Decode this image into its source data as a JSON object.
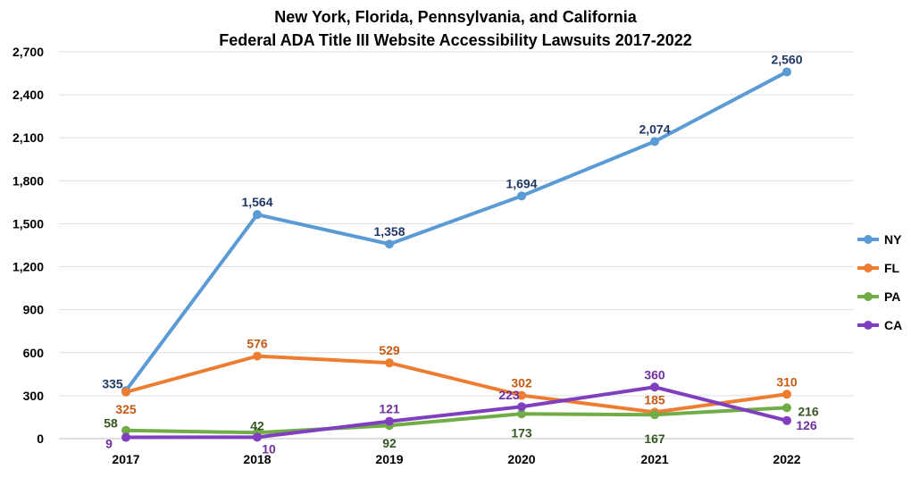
{
  "chart_data": {
    "type": "line",
    "title_lines": [
      "New York, Florida, Pennsylvania, and California",
      "Federal ADA Title III Website Accessibility Lawsuits 2017-2022"
    ],
    "categories": [
      "2017",
      "2018",
      "2019",
      "2020",
      "2021",
      "2022"
    ],
    "ylim": [
      0,
      2700
    ],
    "yticks": [
      0,
      300,
      600,
      900,
      1200,
      1500,
      1800,
      2100,
      2400,
      2700
    ],
    "ytick_labels": [
      "0",
      "300",
      "600",
      "900",
      "1,200",
      "1,500",
      "1,800",
      "2,100",
      "2,400",
      "2,700"
    ],
    "grid": true,
    "legend_position": "right",
    "series": [
      {
        "name": "NY",
        "color": "#5b9bd5",
        "label_color": "#1f3864",
        "values": [
          335,
          1564,
          1358,
          1694,
          2074,
          2560
        ],
        "labels": [
          "335",
          "1,564",
          "1,358",
          "1,694",
          "2,074",
          "2,560"
        ]
      },
      {
        "name": "FL",
        "color": "#ed7d31",
        "label_color": "#c55a11",
        "values": [
          325,
          576,
          529,
          302,
          185,
          310
        ],
        "labels": [
          "325",
          "576",
          "529",
          "302",
          "185",
          "310"
        ]
      },
      {
        "name": "PA",
        "color": "#70ad47",
        "label_color": "#375623",
        "values": [
          58,
          42,
          92,
          173,
          167,
          216
        ],
        "labels": [
          "58",
          "42",
          "92",
          "173",
          "167",
          "216"
        ]
      },
      {
        "name": "CA",
        "color": "#7f3fbf",
        "label_color": "#7030a0",
        "values": [
          9,
          10,
          121,
          223,
          360,
          126
        ],
        "labels": [
          "9",
          "10",
          "121",
          "223",
          "360",
          "126"
        ]
      }
    ]
  }
}
